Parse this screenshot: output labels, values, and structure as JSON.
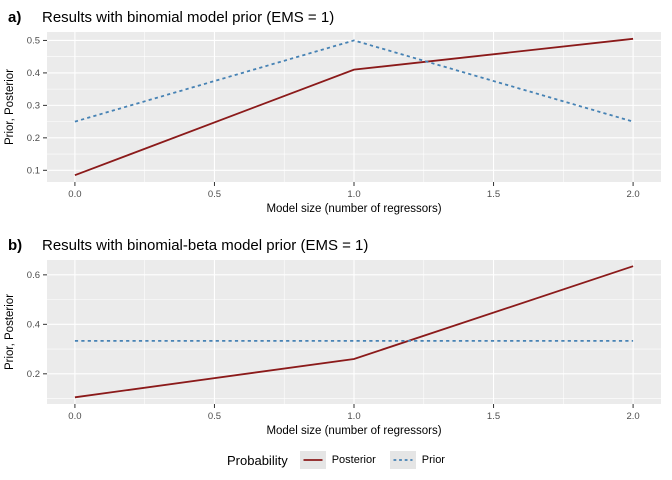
{
  "colors": {
    "panel_background": "#EBEBEB",
    "gridline": "#FFFFFF",
    "tick_mark": "#333333",
    "tick_text": "#4D4D4D",
    "axis_text": "#000000",
    "posterior_line": "#8B1A1A",
    "prior_line": "#4682B4",
    "legend_key_background": "#E5E5E5"
  },
  "legend": {
    "title": "Probability",
    "entries": [
      {
        "label": "Posterior",
        "color": "#8B1A1A",
        "linetype": "solid"
      },
      {
        "label": "Prior",
        "color": "#4682B4",
        "linetype": "dashed"
      }
    ]
  },
  "chart_data": [
    {
      "type": "line",
      "panel_label": "a)",
      "title": "Results with binomial model prior (EMS = 1)",
      "xlabel": "Model size (number of regressors)",
      "ylabel": "Prior, Posterior",
      "x": [
        0.0,
        1.0,
        2.0
      ],
      "series": [
        {
          "name": "Posterior",
          "values": [
            0.085,
            0.41,
            0.505
          ],
          "color": "#8B1A1A",
          "linetype": "solid"
        },
        {
          "name": "Prior",
          "values": [
            0.25,
            0.5,
            0.25
          ],
          "color": "#4682B4",
          "linetype": "dashed"
        }
      ],
      "xlim": [
        -0.1,
        2.1
      ],
      "ylim": [
        0.064,
        0.526
      ],
      "xticks": [
        0.0,
        0.5,
        1.0,
        1.5,
        2.0
      ],
      "xtick_labels": [
        "0.0",
        "0.5",
        "1.0",
        "1.5",
        "2.0"
      ],
      "yticks": [
        0.1,
        0.2,
        0.3,
        0.4,
        0.5
      ],
      "ytick_labels": [
        "0.1",
        "0.2",
        "0.3",
        "0.4",
        "0.5"
      ],
      "grid": true,
      "legend_position": "bottom"
    },
    {
      "type": "line",
      "panel_label": "b)",
      "title": "Results with binomial-beta model prior (EMS = 1)",
      "xlabel": "Model size (number of regressors)",
      "ylabel": "Prior, Posterior",
      "x": [
        0.0,
        1.0,
        2.0
      ],
      "series": [
        {
          "name": "Posterior",
          "values": [
            0.105,
            0.26,
            0.635
          ],
          "color": "#8B1A1A",
          "linetype": "solid"
        },
        {
          "name": "Prior",
          "values": [
            0.333,
            0.333,
            0.333
          ],
          "color": "#4682B4",
          "linetype": "dashed"
        }
      ],
      "xlim": [
        -0.1,
        2.1
      ],
      "ylim": [
        0.078,
        0.66
      ],
      "xticks": [
        0.0,
        0.5,
        1.0,
        1.5,
        2.0
      ],
      "xtick_labels": [
        "0.0",
        "0.5",
        "1.0",
        "1.5",
        "2.0"
      ],
      "yticks": [
        0.2,
        0.4,
        0.6
      ],
      "ytick_labels": [
        "0.2",
        "0.4",
        "0.6"
      ],
      "grid": true,
      "legend_position": "bottom"
    }
  ]
}
